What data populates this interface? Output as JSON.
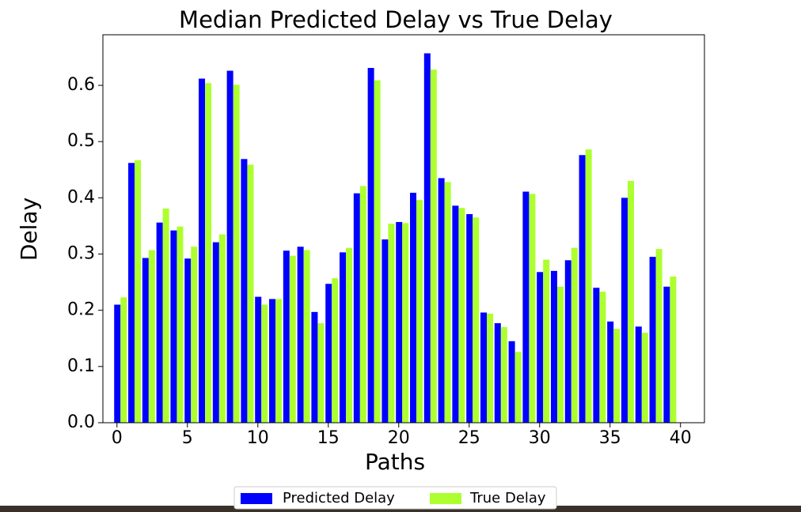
{
  "chart_data": {
    "type": "bar",
    "title": "Median Predicted Delay vs True Delay",
    "x_label": "Paths",
    "y_label": "Delay",
    "x": [
      0,
      1,
      2,
      3,
      4,
      5,
      6,
      7,
      8,
      9,
      10,
      11,
      12,
      13,
      14,
      15,
      16,
      17,
      18,
      19,
      20,
      21,
      22,
      23,
      24,
      25,
      26,
      27,
      28,
      29,
      30,
      31,
      32,
      33,
      34,
      35,
      36,
      37,
      38,
      39
    ],
    "series": [
      {
        "name": "Predicted Delay",
        "color": "#0000ff",
        "values": [
          0.21,
          0.462,
          0.293,
          0.356,
          0.342,
          0.292,
          0.612,
          0.321,
          0.626,
          0.469,
          0.224,
          0.22,
          0.306,
          0.313,
          0.197,
          0.247,
          0.303,
          0.408,
          0.631,
          0.326,
          0.357,
          0.409,
          0.657,
          0.435,
          0.386,
          0.371,
          0.196,
          0.177,
          0.145,
          0.411,
          0.268,
          0.27,
          0.289,
          0.476,
          0.24,
          0.18,
          0.4,
          0.171,
          0.295,
          0.242
        ]
      },
      {
        "name": "True Delay",
        "color": "#adff2f",
        "values": [
          0.223,
          0.467,
          0.307,
          0.381,
          0.349,
          0.313,
          0.604,
          0.335,
          0.601,
          0.459,
          0.21,
          0.22,
          0.297,
          0.307,
          0.177,
          0.257,
          0.311,
          0.421,
          0.609,
          0.354,
          0.355,
          0.396,
          0.628,
          0.428,
          0.382,
          0.365,
          0.194,
          0.17,
          0.126,
          0.407,
          0.29,
          0.242,
          0.311,
          0.486,
          0.233,
          0.167,
          0.43,
          0.16,
          0.309,
          0.26
        ]
      }
    ],
    "xlim": [
      -1.0,
      41.7
    ],
    "xticks": [
      0,
      5,
      10,
      15,
      20,
      25,
      30,
      35,
      40
    ],
    "ylim": [
      0,
      0.69
    ],
    "yticks": [
      {
        "value": 0,
        "label": "0.0"
      },
      0.1,
      0.2,
      0.3,
      0.4,
      0.5,
      0.6
    ],
    "grid": false,
    "legend": "bottom"
  }
}
